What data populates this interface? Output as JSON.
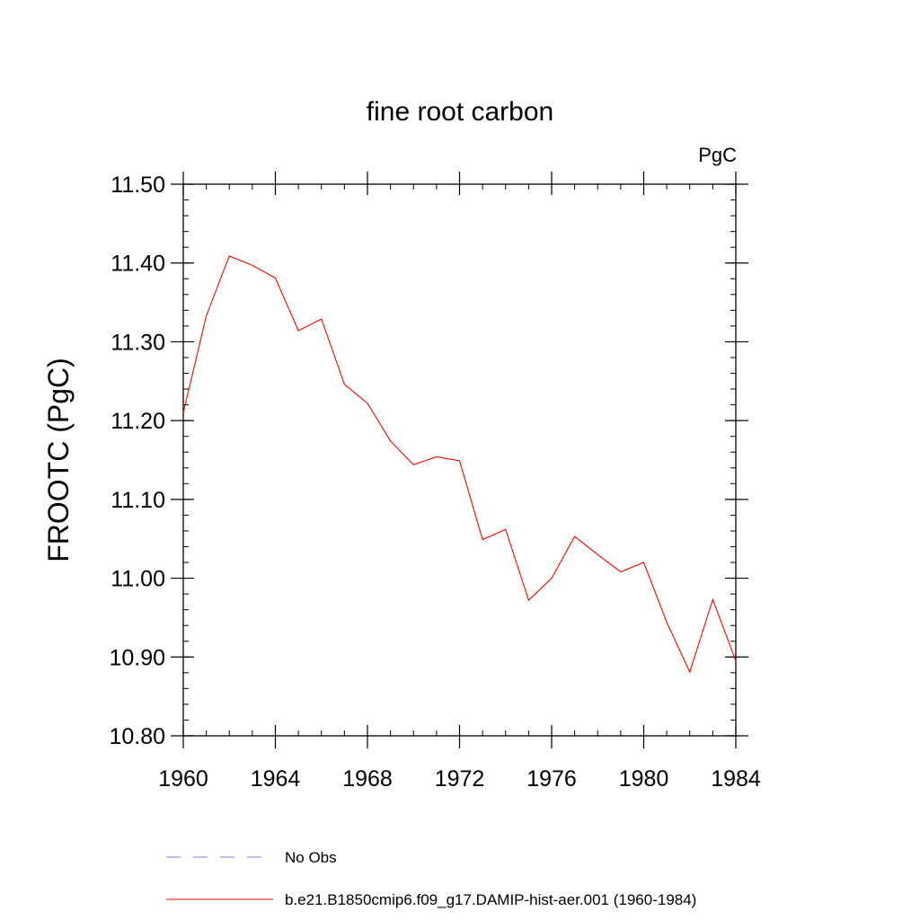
{
  "chart_data": {
    "type": "line",
    "title": "fine root carbon",
    "units_label": "PgC",
    "ylabel": "FROOTC  (PgC)",
    "xlabel": "",
    "xlim": [
      1960,
      1984
    ],
    "ylim": [
      10.8,
      11.5
    ],
    "x_ticks": [
      1960,
      1964,
      1968,
      1972,
      1976,
      1980,
      1984
    ],
    "x_tick_labels": [
      "1960",
      "1964",
      "1968",
      "1972",
      "1976",
      "1980",
      "1984"
    ],
    "y_ticks": [
      10.8,
      10.9,
      11.0,
      11.1,
      11.2,
      11.3,
      11.4,
      11.5
    ],
    "y_tick_labels": [
      "10.80",
      "10.90",
      "11.00",
      "11.10",
      "11.20",
      "11.30",
      "11.40",
      "11.50"
    ],
    "x_minor_step": 1,
    "y_minor_step": 0.02,
    "grid": false,
    "legend_position": "bottom",
    "series": [
      {
        "name": "b.e21.B1850cmip6.f09_g17.DAMIP-hist-aer.001 (1960-1984)",
        "color": "#ff0000",
        "style": "solid",
        "x": [
          1960,
          1961,
          1962,
          1963,
          1964,
          1965,
          1966,
          1967,
          1968,
          1969,
          1970,
          1971,
          1972,
          1973,
          1974,
          1975,
          1976,
          1977,
          1978,
          1979,
          1980,
          1981,
          1982,
          1983,
          1984
        ],
        "y": [
          11.21,
          11.333,
          11.409,
          11.397,
          11.381,
          11.314,
          11.329,
          11.246,
          11.222,
          11.174,
          11.144,
          11.154,
          11.149,
          11.049,
          11.062,
          10.972,
          11.0,
          11.053,
          11.03,
          11.008,
          11.02,
          10.944,
          10.881,
          10.973,
          10.895
        ]
      }
    ],
    "legend": [
      {
        "label": "No Obs",
        "color": "#8080e0",
        "style": "dashed"
      },
      {
        "label": "b.e21.B1850cmip6.f09_g17.DAMIP-hist-aer.001 (1960-1984)",
        "color": "#ff0000",
        "style": "solid"
      }
    ]
  }
}
